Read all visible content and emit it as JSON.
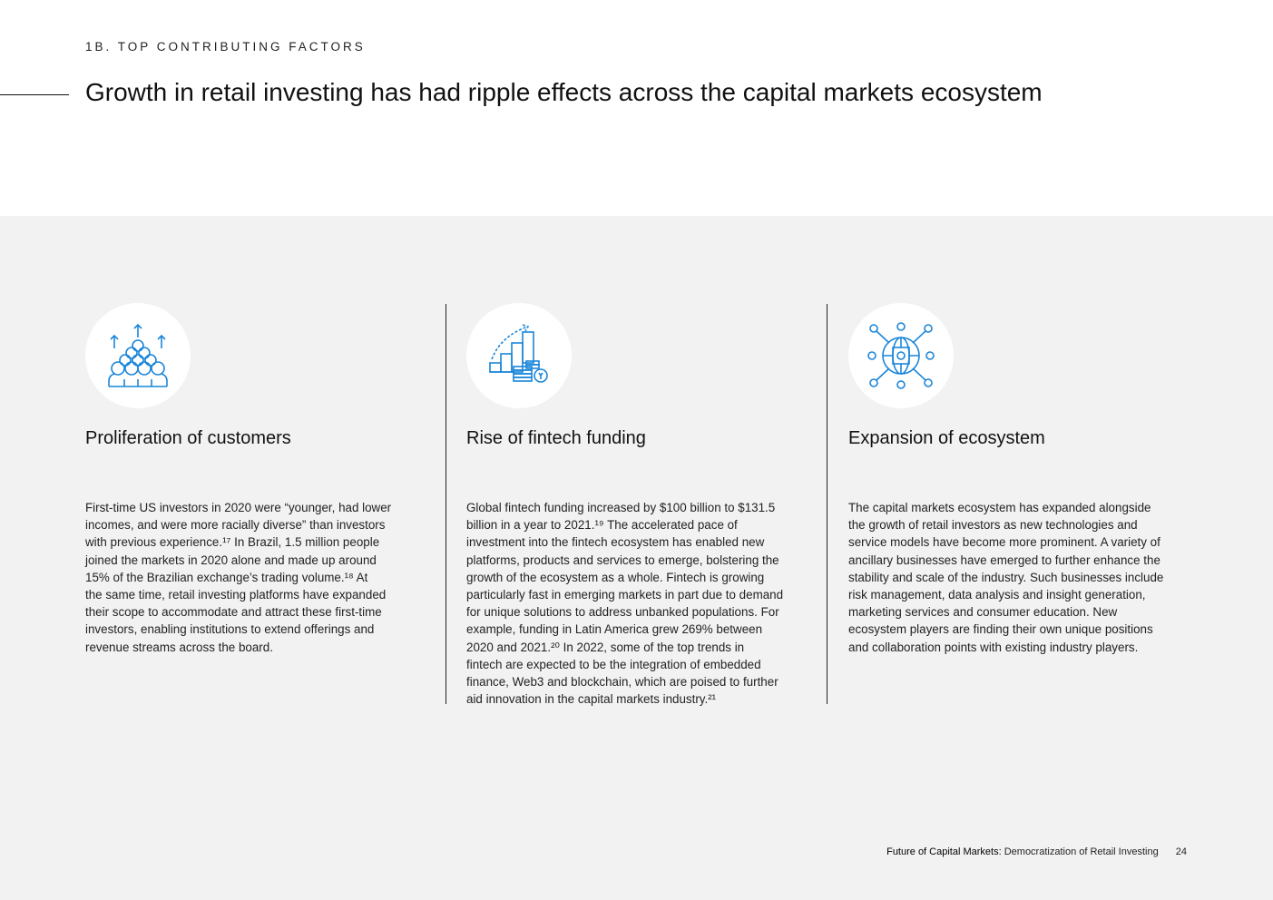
{
  "header": {
    "eyebrow": "1B. TOP CONTRIBUTING FACTORS",
    "title": "Growth in retail investing has had ripple effects across the capital markets ecosystem"
  },
  "accent_color": "#1a86d9",
  "columns": [
    {
      "icon": "crowd-growth-icon",
      "heading": "Proliferation of customers",
      "lines": [
        "First-time US investors in 2020 were “younger, had lower",
        "incomes, and were more racially diverse” than investors",
        "with previous experience.¹⁷ In Brazil, 1.5 million people",
        "joined the markets in 2020 alone and made up around",
        "15% of the Brazilian exchange’s trading volume.¹⁸ At",
        "the same time, retail investing platforms have expanded",
        "their scope to accommodate and attract these first-time",
        "investors, enabling institutions to extend offerings and",
        "revenue streams across the board."
      ]
    },
    {
      "icon": "bar-chart-coins-icon",
      "heading": "Rise of fintech funding",
      "lines": [
        "Global fintech funding increased by $100 billion to $131.5",
        "billion in a year to 2021.¹⁹ The accelerated pace of",
        "investment into the fintech ecosystem has enabled new",
        "platforms, products and services to emerge, bolstering the",
        "growth of the ecosystem as a whole. Fintech is growing",
        "particularly fast in emerging markets in part due to demand",
        "for unique solutions to address unbanked populations. For",
        "example, funding in Latin America grew 269% between",
        "2020 and 2021.²⁰ In 2022, some of the top trends in",
        "fintech are expected to be the integration of embedded",
        "finance, Web3 and blockchain, which are poised to further",
        "aid innovation in the capital markets industry.²¹"
      ]
    },
    {
      "icon": "globe-network-icon",
      "heading": "Expansion of ecosystem",
      "lines": [
        "The capital markets ecosystem has expanded alongside",
        "the growth of retail investors as new technologies and",
        "service models have become more prominent. A variety of",
        "ancillary businesses have emerged to further enhance the",
        "stability and scale of the industry. Such businesses include",
        "risk management, data analysis and insight generation,",
        "marketing services and consumer education. New",
        "ecosystem players are finding their own unique positions",
        "and collaboration points with existing industry players."
      ]
    }
  ],
  "footer": {
    "title": "Future of Capital Markets:",
    "subtitle": "Democratization of Retail Investing",
    "page": "24"
  }
}
